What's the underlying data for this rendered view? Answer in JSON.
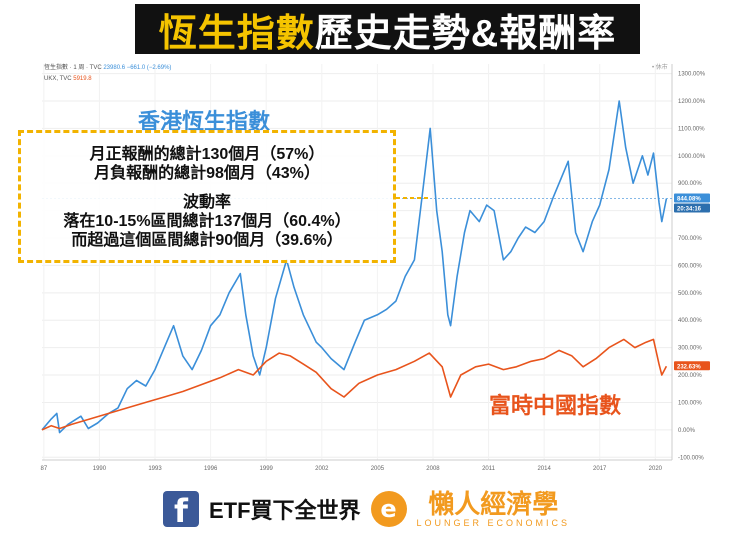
{
  "header": {
    "title_highlight": "恆生指數",
    "title_rest": "歷史走勢&報酬率"
  },
  "legend": {
    "row1_name": "恆生指數 · 1 周 · TVC",
    "row1_value": "23980.6 −661.0 (−2.69%)",
    "row2_name": "UKX, TVC",
    "row2_value": "5919.8",
    "live_label": "• 休市"
  },
  "labels": {
    "hsi": "香港恆生指數",
    "ftse": "富時中國指數"
  },
  "note": {
    "line1": "月正報酬的總計130個月（57%）",
    "line2": "月負報酬的總計98個月（43%）",
    "line3": "波動率",
    "line4": "落在10-15%區間總計137個月（60.4%）",
    "line5": "而超過這個區間總計90個月（39.6%）"
  },
  "footer": {
    "fb_glyph": "f",
    "fb_text": "ETF買下全世界",
    "logo_glyph": "e",
    "brand_cn": "懶人經濟學",
    "brand_en": "LOUNGER ECONOMICS"
  },
  "chart_data": {
    "type": "line",
    "title": "",
    "xlabel": "",
    "ylabel": "",
    "x_ticks": [
      "87",
      "1990",
      "1993",
      "1996",
      "1999",
      "2002",
      "2005",
      "2008",
      "2011",
      "2014",
      "2017",
      "2020"
    ],
    "x_tick_years": [
      1987,
      1990,
      1993,
      1996,
      1999,
      2002,
      2005,
      2008,
      2011,
      2014,
      2017,
      2020
    ],
    "xlim": [
      1986.9,
      2020.9
    ],
    "y_ticks": [
      -100,
      0,
      100,
      200,
      300,
      400,
      500,
      600,
      700,
      800,
      900,
      1000,
      1100,
      1200,
      1300
    ],
    "y_tick_suffix": ".00%",
    "ylim": [
      -110,
      1335
    ],
    "colors": {
      "hsi": "#3b8fd9",
      "ftse": "#e8541c"
    },
    "last_value_labels": {
      "hsi_pct": "844.08%",
      "hsi_time": "20:34:16",
      "ftse_pct": "232.63%"
    },
    "series": [
      {
        "key": "hsi",
        "x": [
          1986.9,
          1987.4,
          1987.7,
          1987.85,
          1988.3,
          1989.0,
          1989.4,
          1989.9,
          1990.5,
          1991.0,
          1991.5,
          1992.0,
          1992.5,
          1993.0,
          1993.5,
          1994.0,
          1994.5,
          1995.0,
          1995.5,
          1996.0,
          1996.5,
          1997.0,
          1997.6,
          1997.9,
          1998.3,
          1998.65,
          1999.0,
          1999.5,
          2000.1,
          2000.5,
          2001.0,
          2001.7,
          2002.0,
          2002.5,
          2003.2,
          2003.8,
          2004.3,
          2005.0,
          2005.5,
          2006.0,
          2006.5,
          2007.0,
          2007.5,
          2007.85,
          2008.2,
          2008.5,
          2008.8,
          2008.95,
          2009.3,
          2009.7,
          2010.0,
          2010.5,
          2010.9,
          2011.3,
          2011.8,
          2012.2,
          2012.6,
          2013.0,
          2013.5,
          2014.0,
          2014.5,
          2015.3,
          2015.7,
          2016.1,
          2016.6,
          2017.0,
          2017.5,
          2018.05,
          2018.4,
          2018.8,
          2019.3,
          2019.6,
          2019.9,
          2020.2,
          2020.35,
          2020.6
        ],
        "values": [
          0,
          40,
          60,
          -10,
          20,
          50,
          5,
          25,
          60,
          80,
          150,
          180,
          160,
          220,
          300,
          380,
          270,
          220,
          290,
          380,
          420,
          500,
          570,
          420,
          270,
          200,
          300,
          480,
          620,
          520,
          420,
          320,
          300,
          260,
          220,
          320,
          400,
          420,
          440,
          470,
          560,
          620,
          900,
          1100,
          800,
          650,
          420,
          380,
          560,
          720,
          800,
          760,
          820,
          800,
          620,
          650,
          700,
          740,
          720,
          760,
          850,
          980,
          720,
          650,
          760,
          820,
          950,
          1200,
          1030,
          900,
          1000,
          930,
          1010,
          830,
          760,
          844
        ]
      },
      {
        "key": "ftse",
        "x": [
          1986.9,
          1987.4,
          1987.85,
          1988.5,
          1989.5,
          1990.5,
          1991.5,
          1992.5,
          1993.5,
          1994.5,
          1995.5,
          1996.5,
          1997.5,
          1998.3,
          1999.0,
          1999.7,
          2000.3,
          2001.0,
          2001.7,
          2002.5,
          2003.2,
          2004.0,
          2005.0,
          2006.0,
          2007.0,
          2007.8,
          2008.5,
          2008.95,
          2009.5,
          2010.3,
          2011.0,
          2011.8,
          2012.5,
          2013.3,
          2014.0,
          2014.8,
          2015.5,
          2016.1,
          2016.8,
          2017.5,
          2018.3,
          2018.9,
          2019.5,
          2019.9,
          2020.2,
          2020.35,
          2020.6
        ],
        "values": [
          0,
          15,
          5,
          20,
          40,
          60,
          80,
          100,
          120,
          140,
          165,
          190,
          220,
          200,
          250,
          280,
          270,
          240,
          210,
          150,
          120,
          170,
          200,
          220,
          250,
          280,
          230,
          120,
          200,
          230,
          240,
          220,
          230,
          250,
          260,
          290,
          270,
          230,
          260,
          300,
          330,
          300,
          320,
          330,
          240,
          200,
          232
        ]
      }
    ]
  }
}
